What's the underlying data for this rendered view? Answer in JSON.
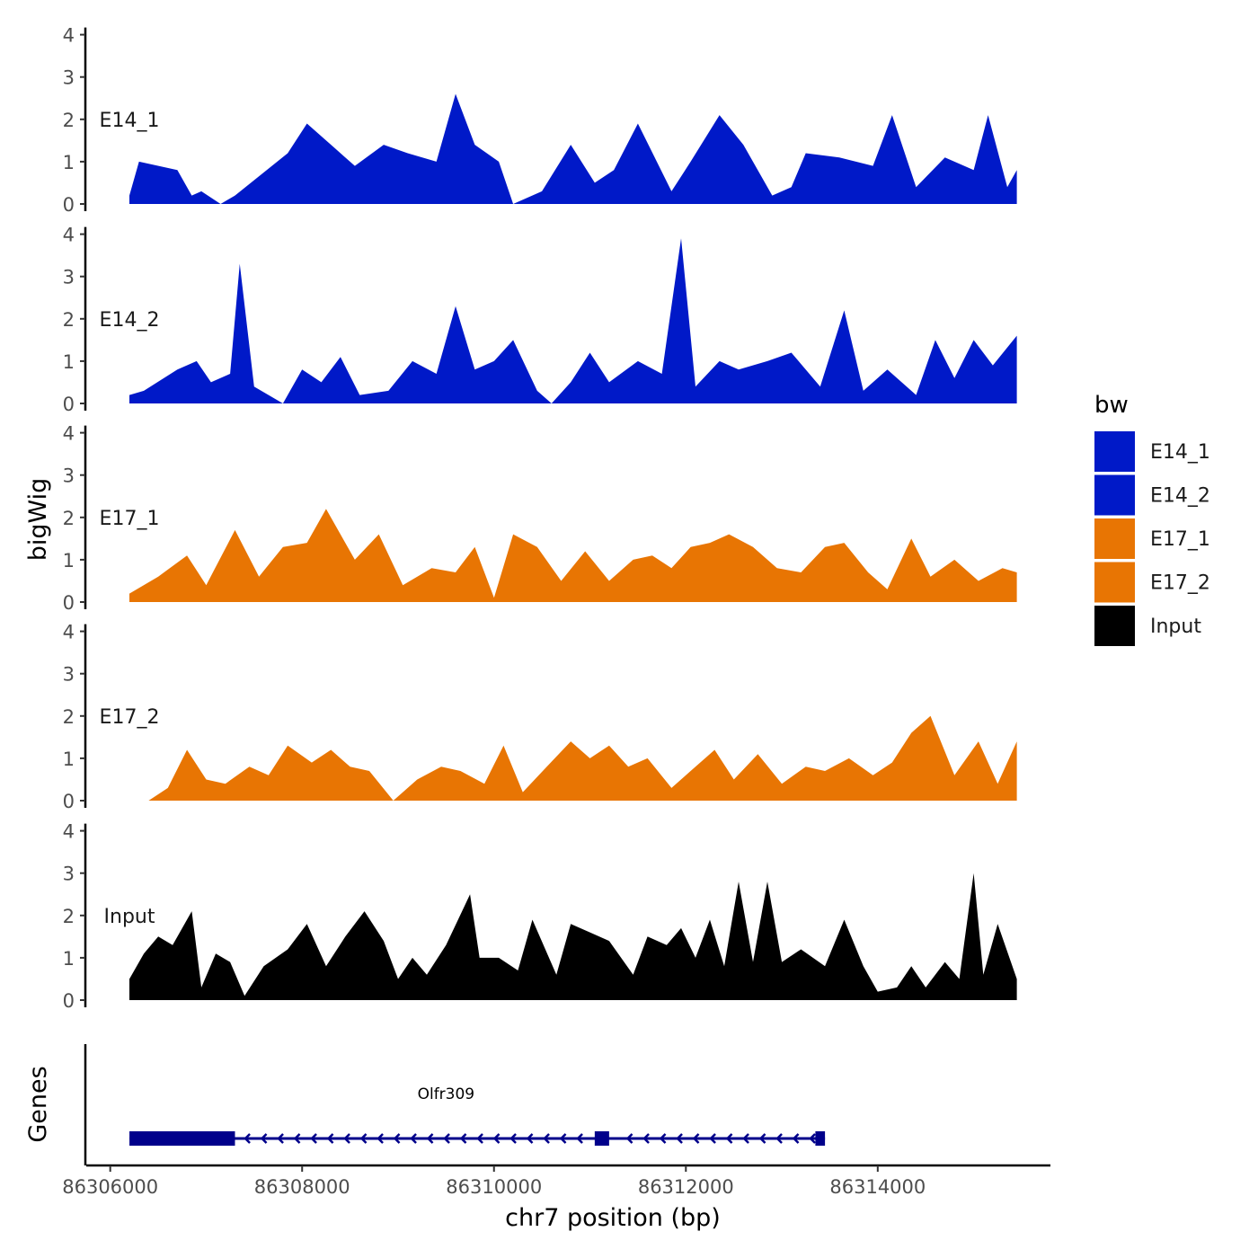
{
  "chart_data": {
    "type": "area",
    "xlabel": "chr7 position (bp)",
    "ylabel": "bigWig",
    "genes_label": "Genes",
    "xlim": [
      86305750,
      86315800
    ],
    "x_ticks": [
      86306000,
      86308000,
      86310000,
      86312000,
      86314000
    ],
    "x_tick_labels": [
      "86306000",
      "86308000",
      "86310000",
      "86312000",
      "86314000"
    ],
    "ylim": [
      0,
      4
    ],
    "y_ticks": [
      0,
      1,
      2,
      3,
      4
    ],
    "y_tick_labels": [
      "0",
      "1",
      "2",
      "3",
      "4"
    ],
    "legend": {
      "title": "bw",
      "entries": [
        {
          "label": "E14_1",
          "color": "#0019C8"
        },
        {
          "label": "E14_2",
          "color": "#0019C8"
        },
        {
          "label": "E17_1",
          "color": "#E87503"
        },
        {
          "label": "E17_2",
          "color": "#E87503"
        },
        {
          "label": "Input",
          "color": "#000000"
        }
      ]
    },
    "series": [
      {
        "name": "E14_1",
        "color": "#0019C8",
        "x": [
          86306200,
          86306300,
          86306700,
          86306850,
          86306950,
          86307150,
          86307300,
          86307850,
          86308050,
          86308350,
          86308550,
          86308850,
          86309100,
          86309400,
          86309600,
          86309800,
          86310050,
          86310200,
          86310500,
          86310800,
          86311050,
          86311250,
          86311500,
          86311850,
          86312050,
          86312350,
          86312600,
          86312900,
          86313100,
          86313250,
          86313600,
          86313950,
          86314150,
          86314400,
          86314700,
          86315000,
          86315150,
          86315350,
          86315450
        ],
        "y": [
          0.2,
          1.0,
          0.8,
          0.2,
          0.3,
          0,
          0.2,
          1.2,
          1.9,
          1.3,
          0.9,
          1.4,
          1.2,
          1.0,
          2.6,
          1.4,
          1.0,
          0,
          0.3,
          1.4,
          0.5,
          0.8,
          1.9,
          0.3,
          1.0,
          2.1,
          1.4,
          0.2,
          0.4,
          1.2,
          1.1,
          0.9,
          2.1,
          0.4,
          1.1,
          0.8,
          2.1,
          0.4,
          0.8
        ]
      },
      {
        "name": "E14_2",
        "color": "#0019C8",
        "x": [
          86306200,
          86306350,
          86306700,
          86306900,
          86307050,
          86307250,
          86307350,
          86307500,
          86307800,
          86308000,
          86308200,
          86308400,
          86308600,
          86308900,
          86309150,
          86309400,
          86309600,
          86309800,
          86310000,
          86310200,
          86310450,
          86310600,
          86310800,
          86311000,
          86311200,
          86311500,
          86311750,
          86311950,
          86312100,
          86312350,
          86312550,
          86312850,
          86313100,
          86313400,
          86313650,
          86313850,
          86314100,
          86314400,
          86314600,
          86314800,
          86315000,
          86315200,
          86315450
        ],
        "y": [
          0.2,
          0.3,
          0.8,
          1.0,
          0.5,
          0.7,
          3.3,
          0.4,
          0,
          0.8,
          0.5,
          1.1,
          0.2,
          0.3,
          1.0,
          0.7,
          2.3,
          0.8,
          1.0,
          1.5,
          0.3,
          0,
          0.5,
          1.2,
          0.5,
          1.0,
          0.7,
          3.9,
          0.4,
          1.0,
          0.8,
          1.0,
          1.2,
          0.4,
          2.2,
          0.3,
          0.8,
          0.2,
          1.5,
          0.6,
          1.5,
          0.9,
          1.6
        ]
      },
      {
        "name": "E17_1",
        "color": "#E87503",
        "x": [
          86306200,
          86306500,
          86306800,
          86307000,
          86307300,
          86307550,
          86307800,
          86308050,
          86308250,
          86308550,
          86308800,
          86309050,
          86309350,
          86309600,
          86309800,
          86310000,
          86310200,
          86310450,
          86310700,
          86310950,
          86311200,
          86311450,
          86311650,
          86311850,
          86312050,
          86312250,
          86312450,
          86312700,
          86312950,
          86313200,
          86313450,
          86313650,
          86313900,
          86314100,
          86314350,
          86314550,
          86314800,
          86315050,
          86315300,
          86315450
        ],
        "y": [
          0.2,
          0.6,
          1.1,
          0.4,
          1.7,
          0.6,
          1.3,
          1.4,
          2.2,
          1.0,
          1.6,
          0.4,
          0.8,
          0.7,
          1.3,
          0.1,
          1.6,
          1.3,
          0.5,
          1.2,
          0.5,
          1.0,
          1.1,
          0.8,
          1.3,
          1.4,
          1.6,
          1.3,
          0.8,
          0.7,
          1.3,
          1.4,
          0.7,
          0.3,
          1.5,
          0.6,
          1.0,
          0.5,
          0.8,
          0.7
        ]
      },
      {
        "name": "E17_2",
        "color": "#E87503",
        "x": [
          86306400,
          86306600,
          86306800,
          86307000,
          86307200,
          86307450,
          86307650,
          86307850,
          86308100,
          86308300,
          86308500,
          86308700,
          86308950,
          86309200,
          86309450,
          86309650,
          86309900,
          86310100,
          86310300,
          86310550,
          86310800,
          86311000,
          86311200,
          86311400,
          86311600,
          86311850,
          86312050,
          86312300,
          86312500,
          86312750,
          86313000,
          86313250,
          86313450,
          86313700,
          86313950,
          86314150,
          86314350,
          86314550,
          86314800,
          86315050,
          86315250,
          86315450
        ],
        "y": [
          0,
          0.3,
          1.2,
          0.5,
          0.4,
          0.8,
          0.6,
          1.3,
          0.9,
          1.2,
          0.8,
          0.7,
          0,
          0.5,
          0.8,
          0.7,
          0.4,
          1.3,
          0.2,
          0.8,
          1.4,
          1.0,
          1.3,
          0.8,
          1.0,
          0.3,
          0.7,
          1.2,
          0.5,
          1.1,
          0.4,
          0.8,
          0.7,
          1.0,
          0.6,
          0.9,
          1.6,
          2.0,
          0.6,
          1.4,
          0.4,
          1.4
        ]
      },
      {
        "name": "Input",
        "color": "#000000",
        "x": [
          86306200,
          86306350,
          86306500,
          86306650,
          86306850,
          86306950,
          86307100,
          86307250,
          86307400,
          86307600,
          86307850,
          86308050,
          86308250,
          86308450,
          86308650,
          86308850,
          86309000,
          86309150,
          86309300,
          86309500,
          86309750,
          86309850,
          86310050,
          86310250,
          86310400,
          86310650,
          86310800,
          86311000,
          86311200,
          86311450,
          86311600,
          86311800,
          86311950,
          86312100,
          86312250,
          86312400,
          86312550,
          86312700,
          86312850,
          86313000,
          86313200,
          86313450,
          86313650,
          86313850,
          86314000,
          86314200,
          86314350,
          86314500,
          86314700,
          86314850,
          86315000,
          86315100,
          86315250,
          86315450
        ],
        "y": [
          0.5,
          1.1,
          1.5,
          1.3,
          2.1,
          0.3,
          1.1,
          0.9,
          0.1,
          0.8,
          1.2,
          1.8,
          0.8,
          1.5,
          2.1,
          1.4,
          0.5,
          1.0,
          0.6,
          1.3,
          2.5,
          1.0,
          1.0,
          0.7,
          1.9,
          0.6,
          1.8,
          1.6,
          1.4,
          0.6,
          1.5,
          1.3,
          1.7,
          1.0,
          1.9,
          0.8,
          2.8,
          0.9,
          2.8,
          0.9,
          1.2,
          0.8,
          1.9,
          0.8,
          0.2,
          0.3,
          0.8,
          0.3,
          0.9,
          0.5,
          3.0,
          0.6,
          1.8,
          0.5
        ]
      }
    ],
    "gene": {
      "name": "Olfr309",
      "start": 86306200,
      "end": 86313450,
      "strand": "-",
      "color": "#00008B",
      "exons": [
        [
          86306200,
          86307300
        ],
        [
          86311050,
          86311200
        ],
        [
          86313350,
          86313450
        ]
      ]
    }
  }
}
